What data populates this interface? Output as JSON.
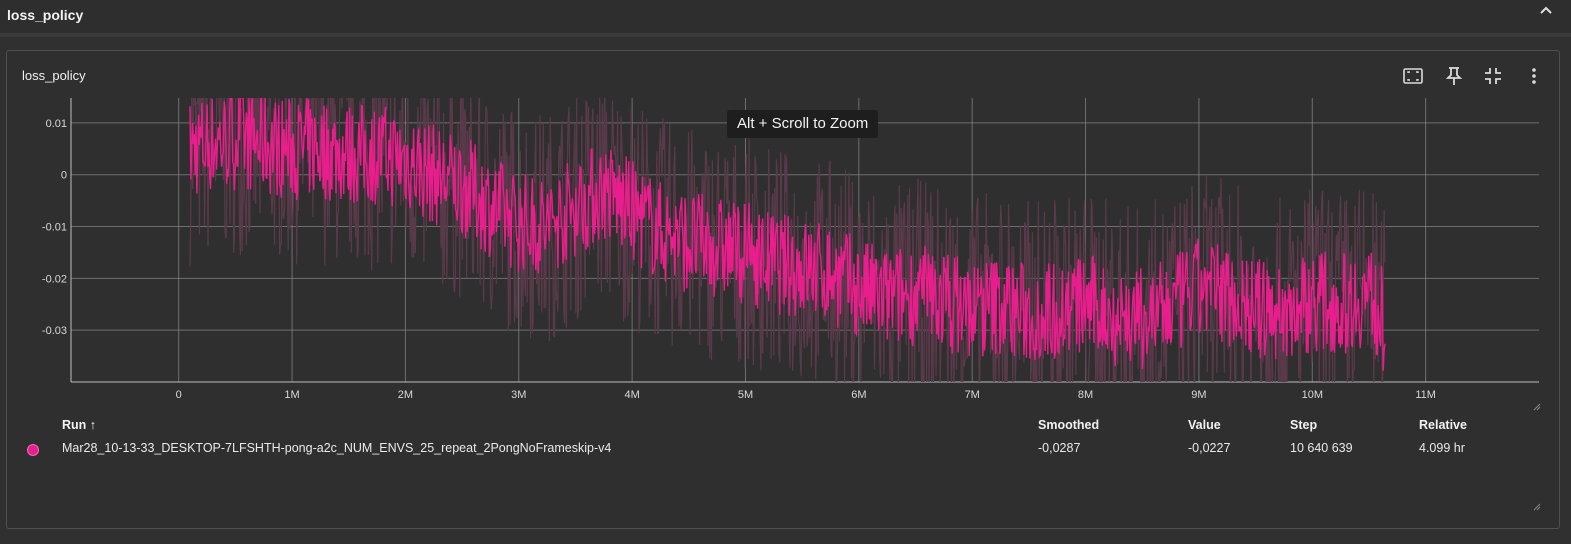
{
  "section": {
    "title": "loss_policy"
  },
  "card": {
    "title": "loss_policy"
  },
  "toolbar": {
    "icons": [
      "fit-domain-icon",
      "pin-icon",
      "collapse-icon",
      "more-vert-icon"
    ]
  },
  "tooltip": {
    "text": "Alt + Scroll to Zoom"
  },
  "colors": {
    "series": "#e91e8c",
    "raw": "#5a3a4a",
    "grid": "#8a8a8a",
    "background": "#2f2f2f"
  },
  "chart_data": {
    "type": "line",
    "x_ticks": [
      "0",
      "1M",
      "2M",
      "3M",
      "4M",
      "5M",
      "6M",
      "7M",
      "8M",
      "9M",
      "10M",
      "11M"
    ],
    "y_ticks": [
      "0.01",
      "0",
      "-0.01",
      "-0.02",
      "-0.03"
    ],
    "xlim": [
      -950000,
      12000000
    ],
    "ylim": [
      -0.04,
      0.0148
    ],
    "series": [
      {
        "smoothed": true,
        "x": [
          0,
          250000,
          500000,
          750000,
          1000000,
          1250000,
          1500000,
          1750000,
          2000000,
          2250000,
          2500000,
          2750000,
          3000000,
          3250000,
          3500000,
          3750000,
          4000000,
          4250000,
          4500000,
          4750000,
          5000000,
          5250000,
          5500000,
          5750000,
          6000000,
          6250000,
          6500000,
          6750000,
          7000000,
          7250000,
          7500000,
          7750000,
          8000000,
          8250000,
          8500000,
          8750000,
          9000000,
          9250000,
          9500000,
          9750000,
          10000000,
          10250000,
          10500000,
          10640639
        ],
        "y": [
          0.004,
          0.006,
          0.007,
          0.006,
          0.005,
          0.005,
          0.004,
          0.004,
          0.003,
          0.0,
          -0.002,
          -0.006,
          -0.009,
          -0.01,
          -0.006,
          -0.003,
          -0.007,
          -0.011,
          -0.013,
          -0.014,
          -0.015,
          -0.017,
          -0.018,
          -0.019,
          -0.022,
          -0.024,
          -0.023,
          -0.024,
          -0.026,
          -0.025,
          -0.027,
          -0.026,
          -0.025,
          -0.027,
          -0.028,
          -0.026,
          -0.022,
          -0.023,
          -0.026,
          -0.027,
          -0.024,
          -0.025,
          -0.023,
          -0.0287
        ]
      }
    ],
    "summary": {
      "smoothed": "-0,0287",
      "value": "-0,0227",
      "step": "10 640 639",
      "relative": "4.099 hr"
    }
  },
  "table": {
    "headers": {
      "run": "Run ↑",
      "smoothed": "Smoothed",
      "value": "Value",
      "step": "Step",
      "relative": "Relative"
    },
    "row": {
      "run": "Mar28_10-13-33_DESKTOP-7LFSHTH-pong-a2c_NUM_ENVS_25_repeat_2PongNoFrameskip-v4",
      "smoothed": "-0,0287",
      "value": "-0,0227",
      "step": "10 640 639",
      "relative": "4.099 hr"
    }
  }
}
